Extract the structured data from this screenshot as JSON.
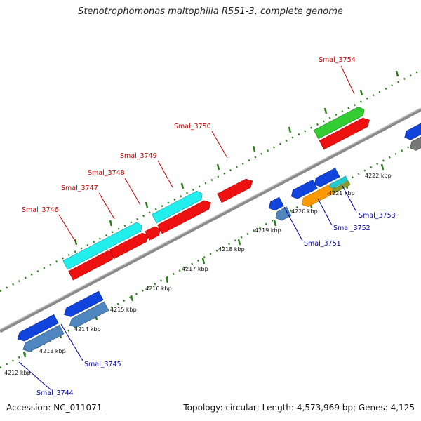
{
  "title": "Stenotrophomonas maltophilia R551-3, complete genome",
  "footer": {
    "accession": "Accession: NC_011071",
    "summary": "Topology: circular; Length: 4,573,969 bp; Genes: 4,125"
  },
  "ticks": [
    {
      "label": "4212 kbp"
    },
    {
      "label": "4213 kbp"
    },
    {
      "label": "4214 kbp"
    },
    {
      "label": "4215 kbp"
    },
    {
      "label": "4216 kbp"
    },
    {
      "label": "4217 kbp"
    },
    {
      "label": "4218 kbp"
    },
    {
      "label": "4219 kbp"
    },
    {
      "label": "4220 kbp"
    },
    {
      "label": "4221 kbp"
    },
    {
      "label": "4222 kbp"
    }
  ],
  "gene_labels": [
    {
      "label": "Smal_3744",
      "strand": "reverse"
    },
    {
      "label": "Smal_3745",
      "strand": "reverse"
    },
    {
      "label": "Smal_3746",
      "strand": "forward"
    },
    {
      "label": "Smal_3747",
      "strand": "forward"
    },
    {
      "label": "Smal_3748",
      "strand": "forward"
    },
    {
      "label": "Smal_3749",
      "strand": "forward"
    },
    {
      "label": "Smal_3750",
      "strand": "forward"
    },
    {
      "label": "Smal_3751",
      "strand": "reverse"
    },
    {
      "label": "Smal_3752",
      "strand": "reverse"
    },
    {
      "label": "Smal_3753",
      "strand": "reverse"
    },
    {
      "label": "Smal_3754",
      "strand": "forward"
    }
  ],
  "colors": {
    "forward_label": "#cc0000",
    "reverse_label": "#0000aa",
    "backbone": "#8a8a8a",
    "tick": "#2e7d1e"
  }
}
